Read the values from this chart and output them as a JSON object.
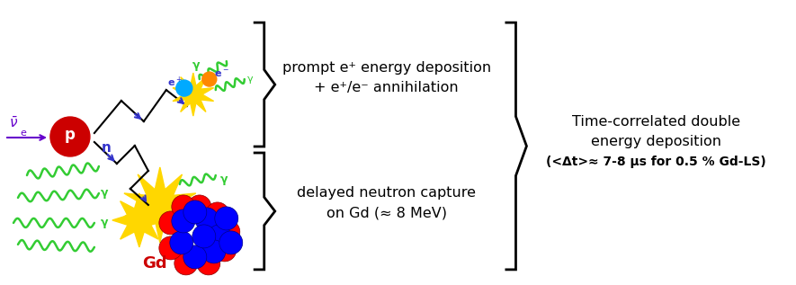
{
  "fig_width": 8.85,
  "fig_height": 3.17,
  "dpi": 100,
  "bg_color": "#ffffff",
  "proton_label": "p",
  "neutron_label": "n",
  "gd_label": "Gd",
  "gamma_label": "γ",
  "eplus_label": "e⁺",
  "eminus_label": "e⁻",
  "neutrino_label": "ν",
  "prompt_line1": "prompt e⁺ energy deposition",
  "prompt_line2": "+ e⁺/e⁻ annihilation",
  "delayed_line1": "delayed neutron capture",
  "delayed_line2": "on Gd (≈ 8 MeV)",
  "right_line1": "Time-correlated double",
  "right_line2": "energy deposition",
  "right_line3": "(<Δt>≈ 7-8 μs for 0.5 % Gd-LS)",
  "green_color": "#33cc33",
  "blue_color": "#3333cc",
  "purple_color": "#6600cc",
  "red_color": "#cc0000",
  "yellow_color": "#FFD700",
  "cyan_color": "#00aaff",
  "orange_color": "#FF8800",
  "black_color": "#000000"
}
